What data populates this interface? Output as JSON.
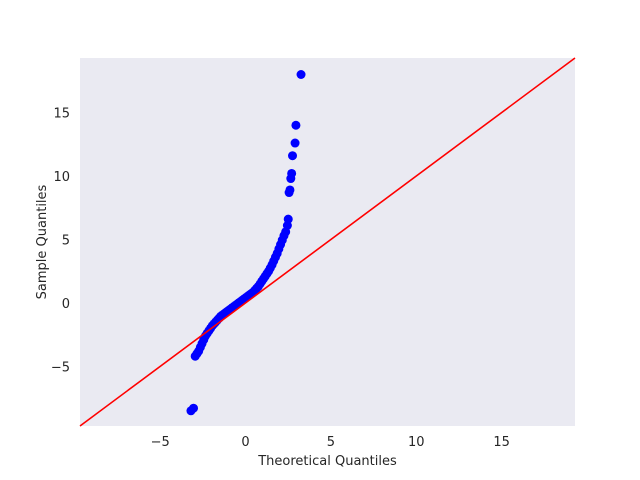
{
  "chart_data": {
    "type": "scatter",
    "title": "",
    "xlabel": "Theoretical Quantiles",
    "ylabel": "Sample Quantiles",
    "xlim": [
      -9.7,
      19.3
    ],
    "ylim": [
      -9.7,
      19.3
    ],
    "grid": false,
    "background": "#eaeaf2",
    "x_ticks": [
      -5,
      0,
      5,
      10,
      15
    ],
    "y_ticks": [
      -5,
      0,
      5,
      10,
      15
    ],
    "x_tick_labels": [
      "−5",
      "0",
      "5",
      "10",
      "15"
    ],
    "y_tick_labels": [
      "−5",
      "0",
      "5",
      "10",
      "15"
    ],
    "points": {
      "color": "#0000ff",
      "x": [
        -3.2,
        -3.05,
        -2.95,
        -2.85,
        -2.75,
        -2.65,
        -2.55,
        -2.45,
        -2.35,
        -2.25,
        -2.15,
        -2.05,
        -1.95,
        -1.85,
        -1.75,
        -1.65,
        -1.55,
        -1.45,
        -1.35,
        -1.25,
        -1.15,
        -1.05,
        -0.95,
        -0.85,
        -0.75,
        -0.65,
        -0.55,
        -0.45,
        -0.35,
        -0.25,
        -0.15,
        -0.05,
        0.05,
        0.15,
        0.25,
        0.35,
        0.45,
        0.55,
        0.65,
        0.75,
        0.85,
        0.95,
        1.05,
        1.15,
        1.25,
        1.35,
        1.45,
        1.55,
        1.65,
        1.75,
        1.85,
        1.95,
        2.05,
        2.15,
        2.25,
        2.35,
        2.45,
        2.5,
        2.55,
        2.6,
        2.65,
        2.7,
        2.75,
        2.9,
        2.95,
        3.25
      ],
      "y": [
        -8.5,
        -8.3,
        -4.2,
        -4.0,
        -3.8,
        -3.5,
        -3.2,
        -2.9,
        -2.6,
        -2.4,
        -2.2,
        -2.0,
        -1.8,
        -1.65,
        -1.5,
        -1.35,
        -1.2,
        -1.05,
        -0.95,
        -0.85,
        -0.75,
        -0.65,
        -0.55,
        -0.45,
        -0.35,
        -0.25,
        -0.15,
        -0.05,
        0.05,
        0.15,
        0.25,
        0.35,
        0.45,
        0.55,
        0.65,
        0.75,
        0.85,
        1.0,
        1.15,
        1.3,
        1.5,
        1.7,
        1.9,
        2.1,
        2.3,
        2.5,
        2.75,
        3.0,
        3.3,
        3.6,
        3.9,
        4.25,
        4.6,
        4.95,
        5.3,
        5.6,
        6.1,
        6.6,
        8.7,
        8.9,
        9.8,
        10.2,
        11.6,
        12.6,
        14.0,
        18.0
      ]
    },
    "reference_line": {
      "color": "#ff0000",
      "x": [
        -9.7,
        19.3
      ],
      "y": [
        -9.7,
        19.3
      ]
    }
  }
}
